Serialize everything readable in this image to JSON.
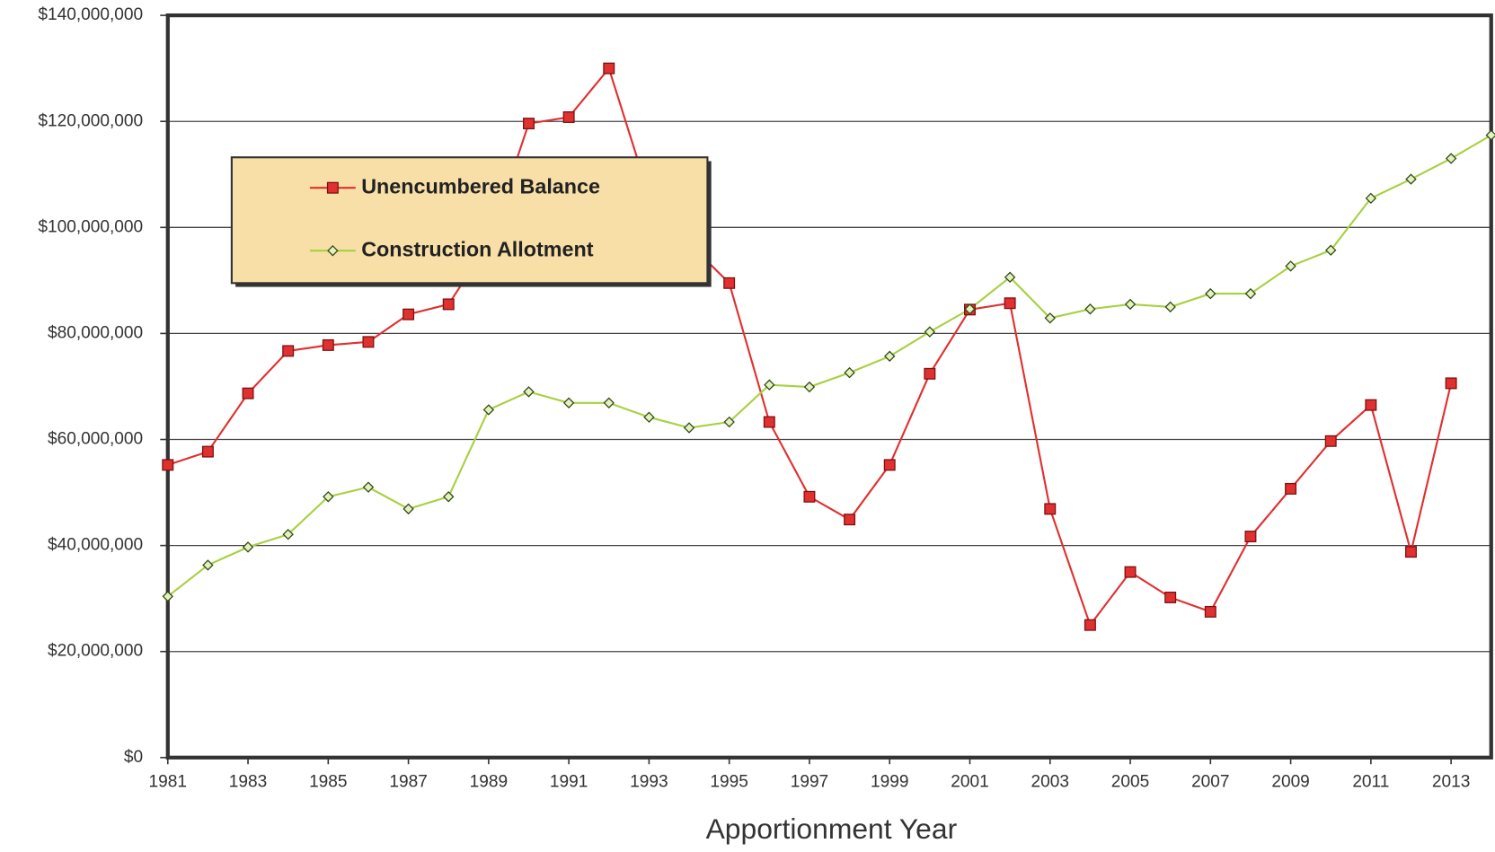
{
  "chart_data": {
    "type": "line",
    "x_label": "Apportionment Year",
    "x": [
      1981,
      1982,
      1983,
      1984,
      1985,
      1986,
      1987,
      1988,
      1989,
      1990,
      1991,
      1992,
      1993,
      1994,
      1995,
      1996,
      1997,
      1998,
      1999,
      2000,
      2001,
      2002,
      2003,
      2004,
      2005,
      2006,
      2007,
      2008,
      2009,
      2010,
      2011,
      2012,
      2013,
      2014
    ],
    "series": [
      {
        "name": "Unencumbered Balance",
        "color": "#e03030",
        "marker": "square",
        "values": [
          55200000,
          57700000,
          68700000,
          76700000,
          77800000,
          78400000,
          83600000,
          85500000,
          97000000,
          119600000,
          120800000,
          130000000,
          106000000,
          97000000,
          89500000,
          63300000,
          49200000,
          44900000,
          55200000,
          72400000,
          84500000,
          85700000,
          46900000,
          25000000,
          35000000,
          30200000,
          27500000,
          41700000,
          50700000,
          59700000,
          66500000,
          38800000,
          70600000,
          null
        ]
      },
      {
        "name": "Construction Allotment",
        "color": "#a8d040",
        "marker": "diamond",
        "values": [
          30400000,
          36300000,
          39700000,
          42100000,
          49200000,
          51000000,
          46900000,
          49200000,
          65600000,
          69000000,
          66900000,
          66900000,
          64200000,
          62200000,
          63300000,
          70300000,
          69900000,
          72600000,
          75700000,
          80300000,
          84600000,
          90600000,
          82900000,
          84600000,
          85500000,
          85000000,
          87500000,
          87500000,
          92700000,
          95700000,
          105500000,
          109100000,
          113000000,
          117400000
        ]
      }
    ],
    "xlim": [
      1981,
      2014
    ],
    "xticks": [
      1981,
      1983,
      1985,
      1987,
      1989,
      1991,
      1993,
      1995,
      1997,
      1999,
      2001,
      2003,
      2005,
      2007,
      2009,
      2011,
      2013
    ],
    "ylim": [
      0,
      140000000
    ],
    "yticks": [
      {
        "value": 0,
        "label": "$0"
      },
      {
        "value": 20000000,
        "label": "$20,000,000"
      },
      {
        "value": 40000000,
        "label": "$40,000,000"
      },
      {
        "value": 60000000,
        "label": "$60,000,000"
      },
      {
        "value": 80000000,
        "label": "$80,000,000"
      },
      {
        "value": 100000000,
        "label": "$100,000,000"
      },
      {
        "value": 120000000,
        "label": "$120,000,000"
      },
      {
        "value": 140000000,
        "label": "$140,000,000"
      }
    ],
    "grid": true,
    "legend": "upper left"
  }
}
